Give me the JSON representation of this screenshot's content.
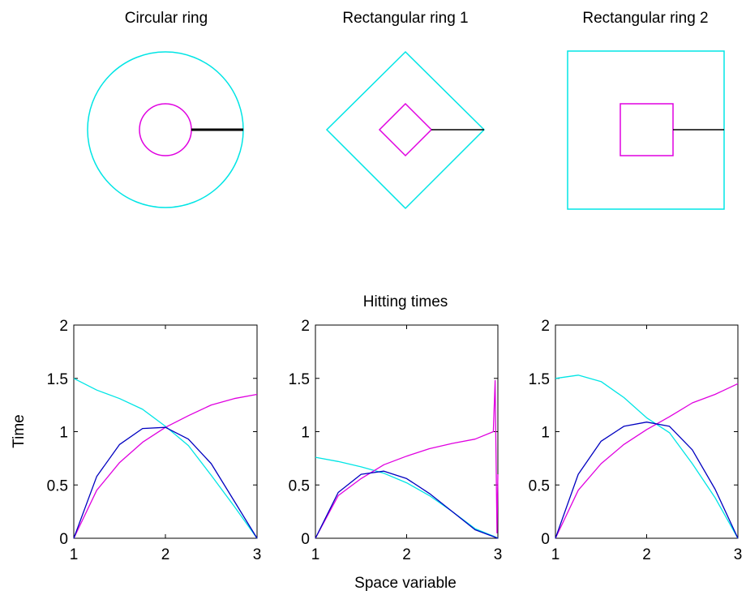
{
  "figure": {
    "colors": {
      "cyan": "#00e5e5",
      "magenta": "#e000e0",
      "blue": "#0000c0",
      "black": "#000000"
    },
    "panels_top": [
      {
        "title": "Circular ring",
        "shape": "circle"
      },
      {
        "title": "Rectangular ring 1",
        "shape": "diamond"
      },
      {
        "title": "Rectangular ring 2",
        "shape": "square"
      }
    ],
    "bottom_title": "Hitting times",
    "xlabel": "Space variable",
    "ylabel": "Time",
    "xticks": [
      "1",
      "2",
      "3"
    ],
    "yticks": [
      "0",
      "0.5",
      "1",
      "1.5",
      "2"
    ]
  },
  "chart_data": [
    {
      "type": "line",
      "title": "",
      "xlim": [
        1,
        3
      ],
      "ylim": [
        0,
        2
      ],
      "series": [
        {
          "color": "cyan",
          "x": [
            1,
            1.25,
            1.5,
            1.75,
            2,
            2.25,
            2.5,
            2.75,
            3
          ],
          "y": [
            1.5,
            1.39,
            1.31,
            1.21,
            1.05,
            0.87,
            0.59,
            0.3,
            0
          ]
        },
        {
          "color": "magenta",
          "x": [
            1,
            1.25,
            1.5,
            1.75,
            2,
            2.25,
            2.5,
            2.75,
            3
          ],
          "y": [
            0,
            0.45,
            0.71,
            0.9,
            1.04,
            1.15,
            1.25,
            1.31,
            1.35
          ]
        },
        {
          "color": "blue",
          "x": [
            1,
            1.25,
            1.5,
            1.75,
            2,
            2.25,
            2.5,
            2.75,
            3
          ],
          "y": [
            0,
            0.58,
            0.88,
            1.03,
            1.04,
            0.93,
            0.7,
            0.35,
            0
          ]
        }
      ]
    },
    {
      "type": "line",
      "title": "",
      "xlim": [
        1,
        3
      ],
      "ylim": [
        0,
        2
      ],
      "series": [
        {
          "color": "cyan",
          "x": [
            1,
            1.25,
            1.5,
            1.75,
            2,
            2.25,
            2.5,
            2.75,
            2.95,
            3
          ],
          "y": [
            0.76,
            0.72,
            0.67,
            0.61,
            0.52,
            0.4,
            0.25,
            0.09,
            0.02,
            0
          ]
        },
        {
          "color": "magenta",
          "x": [
            1,
            1.25,
            1.5,
            1.75,
            2,
            2.25,
            2.5,
            2.75,
            2.95,
            2.97,
            2.99,
            3
          ],
          "y": [
            0,
            0.4,
            0.56,
            0.69,
            0.77,
            0.84,
            0.89,
            0.93,
            1.0,
            1.48,
            0.05,
            0.6
          ]
        },
        {
          "color": "blue",
          "x": [
            1,
            1.25,
            1.5,
            1.75,
            2,
            2.25,
            2.5,
            2.75,
            3
          ],
          "y": [
            0,
            0.43,
            0.6,
            0.63,
            0.56,
            0.42,
            0.25,
            0.08,
            0
          ]
        }
      ]
    },
    {
      "type": "line",
      "title": "",
      "xlim": [
        1,
        3
      ],
      "ylim": [
        0,
        2
      ],
      "series": [
        {
          "color": "cyan",
          "x": [
            1,
            1.25,
            1.5,
            1.75,
            2,
            2.25,
            2.5,
            2.75,
            3
          ],
          "y": [
            1.5,
            1.53,
            1.47,
            1.32,
            1.13,
            0.99,
            0.7,
            0.38,
            0
          ]
        },
        {
          "color": "magenta",
          "x": [
            1,
            1.25,
            1.5,
            1.75,
            2,
            2.25,
            2.5,
            2.75,
            3
          ],
          "y": [
            0,
            0.45,
            0.7,
            0.88,
            1.02,
            1.14,
            1.27,
            1.35,
            1.45
          ]
        },
        {
          "color": "blue",
          "x": [
            1,
            1.25,
            1.5,
            1.75,
            2,
            2.25,
            2.5,
            2.75,
            3
          ],
          "y": [
            0,
            0.6,
            0.91,
            1.05,
            1.09,
            1.05,
            0.83,
            0.46,
            0
          ]
        }
      ]
    }
  ]
}
